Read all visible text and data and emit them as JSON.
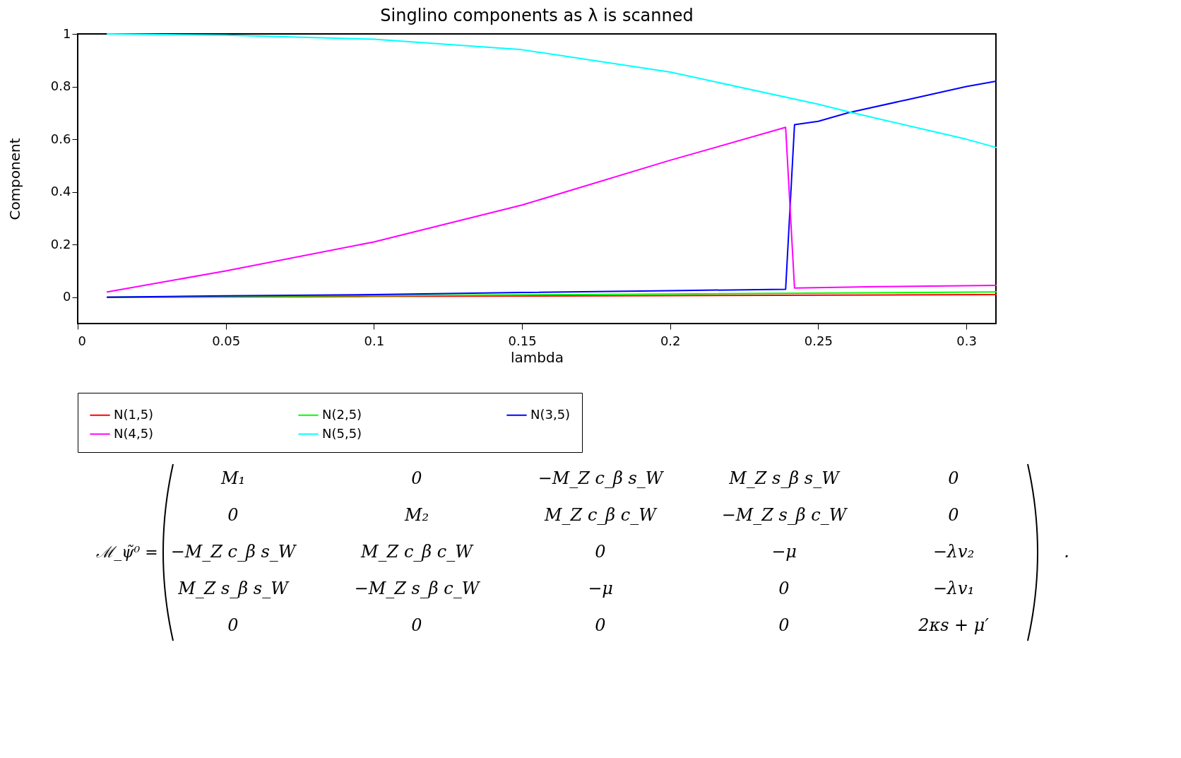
{
  "chart_data": {
    "type": "line",
    "title": "Singlino components as λ is scanned",
    "xlabel": "lambda",
    "ylabel": "Component",
    "xlim": [
      0,
      0.31
    ],
    "xticks": [
      0,
      0.05,
      0.1,
      0.15,
      0.2,
      0.25,
      0.3
    ],
    "ylim": [
      -0.1,
      1
    ],
    "yticks": [
      0,
      0.2,
      0.4,
      0.6,
      0.8,
      1
    ],
    "grid": false,
    "legend": "bottom",
    "series": [
      {
        "name": "N(1,5)",
        "color": "#ff0000",
        "x": [
          0.01,
          0.1,
          0.2,
          0.31
        ],
        "values": [
          0,
          0.003,
          0.006,
          0.01
        ]
      },
      {
        "name": "N(2,5)",
        "color": "#00ff00",
        "x": [
          0.01,
          0.1,
          0.2,
          0.31
        ],
        "values": [
          0,
          0.006,
          0.012,
          0.02
        ]
      },
      {
        "name": "N(3,5)",
        "color": "#0000ff",
        "x": [
          0.01,
          0.05,
          0.1,
          0.15,
          0.2,
          0.239,
          0.242,
          0.25,
          0.26,
          0.28,
          0.3,
          0.31
        ],
        "values": [
          0,
          0.005,
          0.01,
          0.018,
          0.025,
          0.03,
          0.655,
          0.668,
          0.7,
          0.75,
          0.8,
          0.82
        ]
      },
      {
        "name": "N(4,5)",
        "color": "#ff00ff",
        "x": [
          0.01,
          0.05,
          0.1,
          0.15,
          0.2,
          0.239,
          0.242,
          0.27,
          0.31
        ],
        "values": [
          0.02,
          0.1,
          0.21,
          0.35,
          0.52,
          0.645,
          0.035,
          0.04,
          0.045
        ]
      },
      {
        "name": "N(5,5)",
        "color": "#00ffff",
        "x": [
          0.01,
          0.05,
          0.1,
          0.15,
          0.2,
          0.25,
          0.26,
          0.3,
          0.31
        ],
        "values": [
          1.0,
          0.995,
          0.98,
          0.94,
          0.855,
          0.733,
          0.705,
          0.6,
          0.569
        ]
      }
    ],
    "annotations": [
      "ℳ_ψ̃⁰  =",
      "M₁",
      "0",
      "−M_Z c_β s_W",
      "M_Z s_β s_W",
      "0",
      "0",
      "M₂",
      "M_Z c_β c_W",
      "−M_Z s_β c_W",
      "0",
      "−M_Z c_β s_W",
      "M_Z c_β c_W",
      "0",
      "−μ",
      "−λv₂",
      "M_Z s_β s_W",
      "−M_Z s_β c_W",
      "−μ",
      "0",
      "−λv₁",
      "0",
      "0",
      "0",
      "0",
      "2κs + μ′",
      "."
    ]
  }
}
